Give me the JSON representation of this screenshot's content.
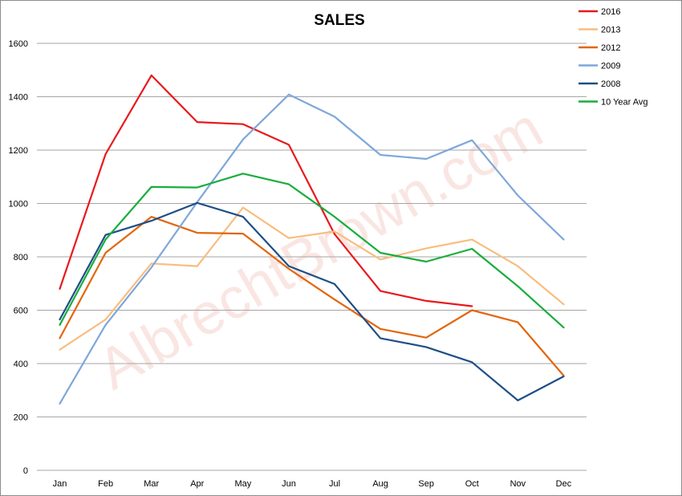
{
  "chart_data": {
    "type": "line",
    "title": "SALES",
    "categories": [
      "Jan",
      "Feb",
      "Mar",
      "Apr",
      "May",
      "Jun",
      "Jul",
      "Aug",
      "Sep",
      "Oct",
      "Nov",
      "Dec"
    ],
    "ylim": [
      0,
      1600
    ],
    "yticks": [
      0,
      200,
      400,
      600,
      800,
      1000,
      1200,
      1400,
      1600
    ],
    "grid": true,
    "legend_position": "top-right",
    "watermark": "AlbrechtBrown.com",
    "series": [
      {
        "name": "2016",
        "color": "#e8191c",
        "values": [
          680,
          1185,
          1480,
          1305,
          1297,
          1220,
          885,
          672,
          635,
          615,
          null,
          null
        ]
      },
      {
        "name": "2013",
        "color": "#f8bd7f",
        "values": [
          452,
          565,
          775,
          765,
          985,
          870,
          895,
          790,
          832,
          865,
          765,
          622
        ]
      },
      {
        "name": "2012",
        "color": "#e2660d",
        "values": [
          495,
          815,
          950,
          890,
          887,
          755,
          640,
          530,
          497,
          600,
          555,
          355
        ]
      },
      {
        "name": "2009",
        "color": "#7fa7da",
        "values": [
          250,
          545,
          760,
          1005,
          1240,
          1408,
          1325,
          1182,
          1167,
          1237,
          1030,
          865
        ]
      },
      {
        "name": "2008",
        "color": "#1f4e86",
        "values": [
          565,
          882,
          935,
          1002,
          950,
          765,
          698,
          495,
          462,
          405,
          262,
          352
        ]
      },
      {
        "name": "10 Year Avg",
        "color": "#19ad3d",
        "values": [
          545,
          865,
          1062,
          1060,
          1112,
          1072,
          950,
          815,
          782,
          830,
          690,
          535
        ]
      }
    ]
  }
}
